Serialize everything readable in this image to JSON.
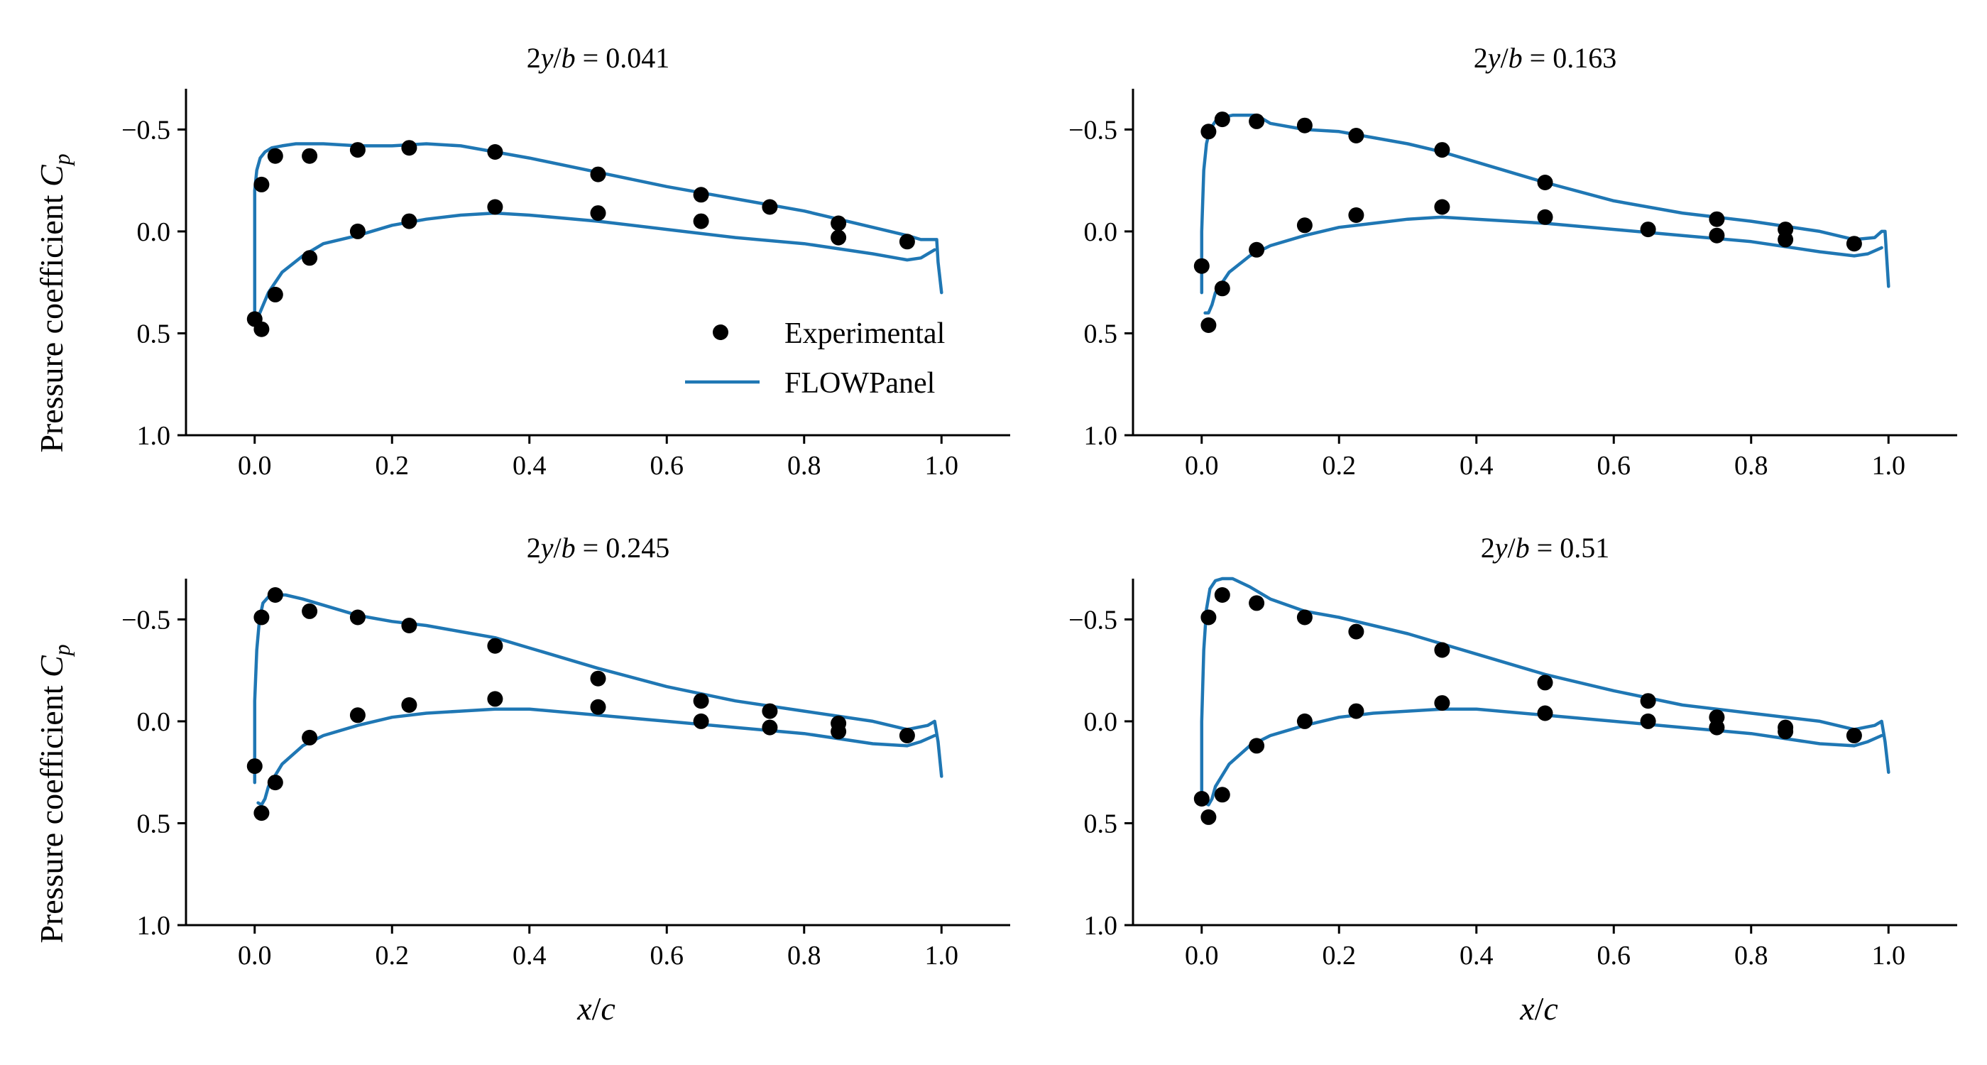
{
  "figure": {
    "ylabel_text": "Pressure coefficient ",
    "ylabel_symbol": "C",
    "ylabel_sub": "p",
    "xlabel_x": "x",
    "xlabel_slash": "/",
    "xlabel_c": "c",
    "legend": {
      "position": "lower-right of top-left panel",
      "experimental": "Experimental",
      "flowpanel": "FLOWPanel"
    },
    "colors": {
      "experimental": "#000000",
      "flowpanel": "#1f77b4"
    }
  },
  "chart_data": [
    {
      "type": "line",
      "title": "2y/b = 0.041",
      "title_parts": {
        "pre": "2",
        "y": "y",
        "slash": "/",
        "b": "b",
        "eq": " = ",
        "val": "0.041"
      },
      "xlim": [
        -0.1,
        1.1
      ],
      "ylim": [
        1.0,
        -0.7
      ],
      "y_inverted": true,
      "xticks": [
        "0.0",
        "0.2",
        "0.4",
        "0.6",
        "0.8",
        "1.0"
      ],
      "yticks": [
        "−0.5",
        "0.0",
        "0.5",
        "1.0"
      ],
      "series": [
        {
          "name": "Experimental",
          "kind": "scatter",
          "x": [
            0.0,
            0.01,
            0.01,
            0.03,
            0.03,
            0.08,
            0.08,
            0.15,
            0.15,
            0.225,
            0.225,
            0.35,
            0.35,
            0.5,
            0.5,
            0.65,
            0.65,
            0.75,
            0.85,
            0.85,
            0.95
          ],
          "y": [
            0.43,
            0.48,
            -0.23,
            0.31,
            -0.37,
            0.13,
            -0.37,
            0.0,
            -0.4,
            -0.05,
            -0.41,
            -0.12,
            -0.39,
            -0.09,
            -0.28,
            -0.05,
            -0.18,
            -0.12,
            -0.04,
            0.03,
            0.05
          ]
        },
        {
          "name": "FLOWPanel",
          "kind": "line",
          "segments": [
            {
              "x": [
                0.0,
                0.0,
                0.003,
                0.008,
                0.015,
                0.025,
                0.04,
                0.06,
                0.1,
                0.15,
                0.2,
                0.25,
                0.3,
                0.35,
                0.4,
                0.5,
                0.6,
                0.7,
                0.8,
                0.85,
                0.9,
                0.95,
                0.97,
                0.99,
                0.993,
                0.995,
                1.0
              ],
              "y": [
                0.4,
                -0.2,
                -0.3,
                -0.36,
                -0.39,
                -0.41,
                -0.42,
                -0.43,
                -0.43,
                -0.42,
                -0.42,
                -0.43,
                -0.42,
                -0.39,
                -0.36,
                -0.29,
                -0.22,
                -0.16,
                -0.1,
                -0.06,
                -0.02,
                0.02,
                0.04,
                0.04,
                0.04,
                0.15,
                0.3
              ]
            },
            {
              "x": [
                0.0,
                0.005,
                0.01,
                0.02,
                0.04,
                0.07,
                0.1,
                0.15,
                0.2,
                0.25,
                0.3,
                0.35,
                0.4,
                0.5,
                0.6,
                0.7,
                0.8,
                0.9,
                0.95,
                0.97,
                0.99
              ],
              "y": [
                0.4,
                0.42,
                0.38,
                0.3,
                0.2,
                0.12,
                0.06,
                0.02,
                -0.03,
                -0.06,
                -0.08,
                -0.09,
                -0.08,
                -0.05,
                -0.01,
                0.03,
                0.06,
                0.11,
                0.14,
                0.13,
                0.09
              ]
            }
          ]
        }
      ]
    },
    {
      "type": "line",
      "title": "2y/b = 0.163",
      "title_parts": {
        "pre": "2",
        "y": "y",
        "slash": "/",
        "b": "b",
        "eq": " = ",
        "val": "0.163"
      },
      "xlim": [
        -0.1,
        1.1
      ],
      "ylim": [
        1.0,
        -0.7
      ],
      "y_inverted": true,
      "xticks": [
        "0.0",
        "0.2",
        "0.4",
        "0.6",
        "0.8",
        "1.0"
      ],
      "yticks": [
        "−0.5",
        "0.0",
        "0.5",
        "1.0"
      ],
      "series": [
        {
          "name": "Experimental",
          "kind": "scatter",
          "x": [
            0.0,
            0.01,
            0.01,
            0.03,
            0.03,
            0.08,
            0.08,
            0.15,
            0.15,
            0.225,
            0.225,
            0.35,
            0.35,
            0.5,
            0.5,
            0.65,
            0.75,
            0.75,
            0.85,
            0.85,
            0.95
          ],
          "y": [
            0.17,
            0.46,
            -0.49,
            0.28,
            -0.55,
            0.09,
            -0.54,
            -0.03,
            -0.52,
            -0.08,
            -0.47,
            -0.12,
            -0.4,
            -0.07,
            -0.24,
            -0.01,
            -0.06,
            0.02,
            -0.01,
            0.04,
            0.06
          ]
        },
        {
          "name": "FLOWPanel",
          "kind": "line",
          "segments": [
            {
              "x": [
                0.0,
                0.0,
                0.003,
                0.007,
                0.012,
                0.02,
                0.03,
                0.045,
                0.06,
                0.08,
                0.1,
                0.15,
                0.2,
                0.25,
                0.3,
                0.35,
                0.4,
                0.5,
                0.6,
                0.7,
                0.8,
                0.9,
                0.95,
                0.98,
                0.99,
                0.995,
                1.0
              ],
              "y": [
                0.3,
                0.0,
                -0.3,
                -0.43,
                -0.5,
                -0.54,
                -0.56,
                -0.57,
                -0.57,
                -0.57,
                -0.53,
                -0.5,
                -0.49,
                -0.46,
                -0.43,
                -0.39,
                -0.34,
                -0.24,
                -0.15,
                -0.09,
                -0.05,
                0.0,
                0.04,
                0.03,
                0.0,
                0.0,
                0.27
              ]
            },
            {
              "x": [
                0.005,
                0.01,
                0.015,
                0.02,
                0.04,
                0.07,
                0.1,
                0.15,
                0.2,
                0.25,
                0.3,
                0.35,
                0.4,
                0.5,
                0.6,
                0.7,
                0.8,
                0.9,
                0.95,
                0.97,
                0.99
              ],
              "y": [
                0.4,
                0.4,
                0.36,
                0.3,
                0.2,
                0.12,
                0.07,
                0.02,
                -0.02,
                -0.04,
                -0.06,
                -0.07,
                -0.06,
                -0.04,
                -0.01,
                0.02,
                0.05,
                0.1,
                0.12,
                0.11,
                0.08
              ]
            }
          ]
        }
      ]
    },
    {
      "type": "line",
      "title": "2y/b = 0.245",
      "title_parts": {
        "pre": "2",
        "y": "y",
        "slash": "/",
        "b": "b",
        "eq": " = ",
        "val": "0.245"
      },
      "xlim": [
        -0.1,
        1.1
      ],
      "ylim": [
        1.0,
        -0.7
      ],
      "y_inverted": true,
      "xticks": [
        "0.0",
        "0.2",
        "0.4",
        "0.6",
        "0.8",
        "1.0"
      ],
      "yticks": [
        "−0.5",
        "0.0",
        "0.5",
        "1.0"
      ],
      "series": [
        {
          "name": "Experimental",
          "kind": "scatter",
          "x": [
            0.0,
            0.01,
            0.01,
            0.03,
            0.03,
            0.08,
            0.08,
            0.15,
            0.15,
            0.225,
            0.225,
            0.35,
            0.35,
            0.5,
            0.5,
            0.65,
            0.65,
            0.75,
            0.75,
            0.85,
            0.85,
            0.95
          ],
          "y": [
            0.22,
            0.45,
            -0.51,
            0.3,
            -0.62,
            0.08,
            -0.54,
            -0.03,
            -0.51,
            -0.08,
            -0.47,
            -0.11,
            -0.37,
            -0.07,
            -0.21,
            0.0,
            -0.1,
            0.03,
            -0.05,
            0.05,
            0.01,
            0.07
          ]
        },
        {
          "name": "FLOWPanel",
          "kind": "line",
          "segments": [
            {
              "x": [
                0.0,
                0.0,
                0.003,
                0.007,
                0.012,
                0.02,
                0.03,
                0.045,
                0.07,
                0.1,
                0.15,
                0.2,
                0.25,
                0.3,
                0.35,
                0.4,
                0.5,
                0.6,
                0.7,
                0.8,
                0.9,
                0.95,
                0.98,
                0.99,
                0.995,
                1.0
              ],
              "y": [
                0.3,
                -0.1,
                -0.35,
                -0.5,
                -0.58,
                -0.61,
                -0.62,
                -0.62,
                -0.6,
                -0.57,
                -0.52,
                -0.49,
                -0.47,
                -0.44,
                -0.41,
                -0.36,
                -0.26,
                -0.17,
                -0.1,
                -0.05,
                0.0,
                0.04,
                0.02,
                0.0,
                0.1,
                0.27
              ]
            },
            {
              "x": [
                0.005,
                0.01,
                0.015,
                0.02,
                0.04,
                0.07,
                0.1,
                0.15,
                0.2,
                0.25,
                0.3,
                0.35,
                0.4,
                0.5,
                0.6,
                0.7,
                0.8,
                0.9,
                0.95,
                0.97,
                0.99
              ],
              "y": [
                0.4,
                0.41,
                0.38,
                0.32,
                0.21,
                0.12,
                0.07,
                0.02,
                -0.02,
                -0.04,
                -0.05,
                -0.06,
                -0.06,
                -0.03,
                0.0,
                0.03,
                0.06,
                0.11,
                0.12,
                0.1,
                0.07
              ]
            }
          ]
        }
      ]
    },
    {
      "type": "line",
      "title": "2y/b = 0.51",
      "title_parts": {
        "pre": "2",
        "y": "y",
        "slash": "/",
        "b": "b",
        "eq": " = ",
        "val": "0.51"
      },
      "xlim": [
        -0.1,
        1.1
      ],
      "ylim": [
        1.0,
        -0.7
      ],
      "y_inverted": true,
      "xticks": [
        "0.0",
        "0.2",
        "0.4",
        "0.6",
        "0.8",
        "1.0"
      ],
      "yticks": [
        "−0.5",
        "0.0",
        "0.5",
        "1.0"
      ],
      "series": [
        {
          "name": "Experimental",
          "kind": "scatter",
          "x": [
            0.0,
            0.01,
            0.01,
            0.03,
            0.03,
            0.08,
            0.08,
            0.15,
            0.15,
            0.225,
            0.225,
            0.35,
            0.35,
            0.5,
            0.5,
            0.65,
            0.65,
            0.75,
            0.75,
            0.85,
            0.85,
            0.95
          ],
          "y": [
            0.38,
            0.47,
            -0.51,
            0.36,
            -0.62,
            0.12,
            -0.58,
            0.0,
            -0.51,
            -0.05,
            -0.44,
            -0.09,
            -0.35,
            -0.04,
            -0.19,
            0.0,
            -0.1,
            0.03,
            -0.02,
            0.05,
            0.03,
            0.07
          ]
        },
        {
          "name": "FLOWPanel",
          "kind": "line",
          "segments": [
            {
              "x": [
                0.0,
                0.0,
                0.003,
                0.007,
                0.012,
                0.02,
                0.03,
                0.045,
                0.07,
                0.1,
                0.15,
                0.2,
                0.25,
                0.3,
                0.35,
                0.4,
                0.5,
                0.6,
                0.7,
                0.8,
                0.9,
                0.95,
                0.98,
                0.99,
                0.995,
                1.0
              ],
              "y": [
                0.4,
                0.0,
                -0.35,
                -0.55,
                -0.65,
                -0.69,
                -0.7,
                -0.7,
                -0.66,
                -0.6,
                -0.54,
                -0.51,
                -0.47,
                -0.43,
                -0.38,
                -0.33,
                -0.23,
                -0.15,
                -0.08,
                -0.04,
                0.0,
                0.04,
                0.02,
                0.0,
                0.1,
                0.25
              ]
            },
            {
              "x": [
                0.005,
                0.01,
                0.015,
                0.02,
                0.04,
                0.07,
                0.1,
                0.15,
                0.2,
                0.25,
                0.3,
                0.35,
                0.4,
                0.5,
                0.6,
                0.7,
                0.8,
                0.9,
                0.95,
                0.97,
                0.99
              ],
              "y": [
                0.4,
                0.41,
                0.38,
                0.32,
                0.21,
                0.12,
                0.07,
                0.02,
                -0.02,
                -0.04,
                -0.05,
                -0.06,
                -0.06,
                -0.03,
                0.0,
                0.03,
                0.06,
                0.11,
                0.12,
                0.1,
                0.07
              ]
            }
          ]
        }
      ]
    }
  ]
}
